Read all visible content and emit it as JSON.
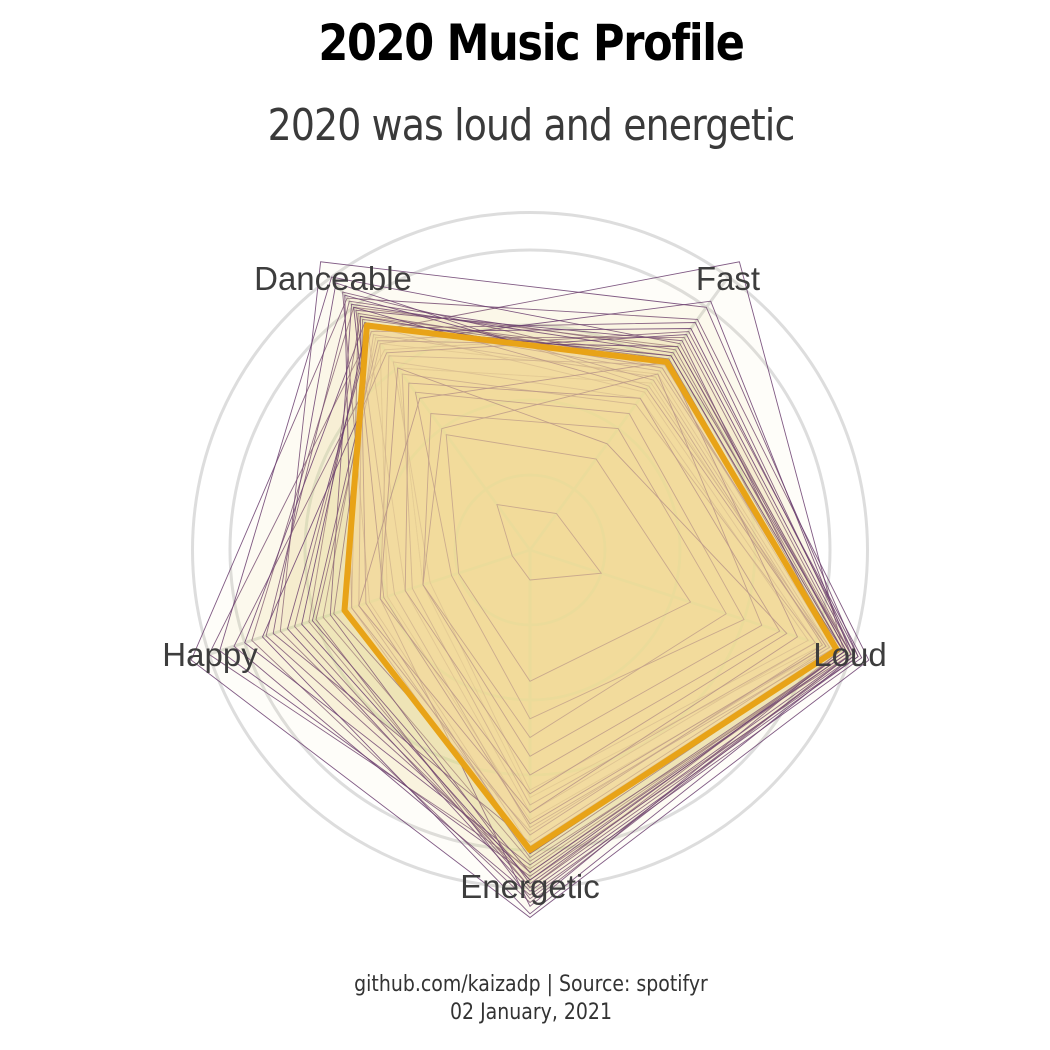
{
  "title": "2020 Music Profile",
  "subtitle": "2020 was loud and energetic",
  "caption_line1": "github.com/kaizadp | Source: spotifyr",
  "caption_line2": "02 January, 2021",
  "colors": {
    "track_line": "#6a3d6e",
    "average_fill": "#f5d99a",
    "average_stroke": "#e8a317",
    "grid": "#dddddd"
  },
  "chart_data": {
    "type": "radar",
    "axes": [
      "Fast",
      "Loud",
      "Energetic",
      "Happy",
      "Danceable"
    ],
    "range": [
      0,
      1
    ],
    "grid_levels": [
      0.2,
      0.4,
      0.6,
      0.8,
      0.9
    ],
    "average_profile": {
      "values": {
        "Fast": 0.62,
        "Loud": 0.86,
        "Energetic": 0.8,
        "Happy": 0.52,
        "Danceable": 0.74
      }
    },
    "track_profiles": [
      {
        "Fast": 0.67,
        "Loud": 0.9,
        "Energetic": 0.94,
        "Happy": 0.78,
        "Danceable": 0.8
      },
      {
        "Fast": 0.95,
        "Loud": 0.88,
        "Energetic": 0.85,
        "Happy": 0.9,
        "Danceable": 0.72
      },
      {
        "Fast": 0.76,
        "Loud": 0.95,
        "Energetic": 0.98,
        "Happy": 0.95,
        "Danceable": 0.83
      },
      {
        "Fast": 0.58,
        "Loud": 0.84,
        "Energetic": 0.72,
        "Happy": 0.4,
        "Danceable": 0.68
      },
      {
        "Fast": 0.8,
        "Loud": 0.92,
        "Energetic": 0.88,
        "Happy": 0.7,
        "Danceable": 0.95
      },
      {
        "Fast": 0.55,
        "Loud": 0.82,
        "Energetic": 0.66,
        "Happy": 0.3,
        "Danceable": 0.6
      },
      {
        "Fast": 0.64,
        "Loud": 0.87,
        "Energetic": 0.9,
        "Happy": 0.62,
        "Danceable": 0.77
      },
      {
        "Fast": 0.7,
        "Loud": 0.9,
        "Energetic": 0.83,
        "Happy": 0.58,
        "Danceable": 0.7
      },
      {
        "Fast": 0.6,
        "Loud": 0.85,
        "Energetic": 0.79,
        "Happy": 0.45,
        "Danceable": 0.85
      },
      {
        "Fast": 0.72,
        "Loud": 0.93,
        "Energetic": 0.92,
        "Happy": 0.83,
        "Danceable": 0.66
      },
      {
        "Fast": 0.52,
        "Loud": 0.8,
        "Energetic": 0.7,
        "Happy": 0.35,
        "Danceable": 0.74
      },
      {
        "Fast": 0.66,
        "Loud": 0.88,
        "Energetic": 0.86,
        "Happy": 0.74,
        "Danceable": 0.82
      },
      {
        "Fast": 0.62,
        "Loud": 0.86,
        "Energetic": 0.82,
        "Happy": 0.5,
        "Danceable": 0.78
      },
      {
        "Fast": 0.75,
        "Loud": 0.91,
        "Energetic": 0.9,
        "Happy": 0.66,
        "Danceable": 0.73
      },
      {
        "Fast": 0.5,
        "Loud": 0.78,
        "Energetic": 0.64,
        "Happy": 0.28,
        "Danceable": 0.62
      },
      {
        "Fast": 0.68,
        "Loud": 0.89,
        "Energetic": 0.87,
        "Happy": 0.87,
        "Danceable": 0.9
      },
      {
        "Fast": 0.57,
        "Loud": 0.83,
        "Energetic": 0.75,
        "Happy": 0.55,
        "Danceable": 0.71
      },
      {
        "Fast": 0.63,
        "Loud": 0.86,
        "Energetic": 0.8,
        "Happy": 0.48,
        "Danceable": 0.76
      },
      {
        "Fast": 0.82,
        "Loud": 0.9,
        "Energetic": 0.93,
        "Happy": 0.6,
        "Danceable": 0.68
      },
      {
        "Fast": 0.54,
        "Loud": 0.84,
        "Energetic": 0.78,
        "Happy": 0.72,
        "Danceable": 0.88
      },
      {
        "Fast": 0.61,
        "Loud": 0.87,
        "Energetic": 0.95,
        "Happy": 0.42,
        "Danceable": 0.64
      },
      {
        "Fast": 0.69,
        "Loud": 0.85,
        "Energetic": 0.74,
        "Happy": 0.38,
        "Danceable": 0.79
      },
      {
        "Fast": 0.59,
        "Loud": 0.88,
        "Energetic": 0.84,
        "Happy": 0.8,
        "Danceable": 0.75
      },
      {
        "Fast": 0.65,
        "Loud": 0.9,
        "Energetic": 0.89,
        "Happy": 0.56,
        "Danceable": 0.81
      },
      {
        "Fast": 0.48,
        "Loud": 0.8,
        "Energetic": 0.68,
        "Happy": 0.33,
        "Danceable": 0.58
      },
      {
        "Fast": 0.73,
        "Loud": 0.92,
        "Energetic": 0.91,
        "Happy": 0.68,
        "Danceable": 0.72
      },
      {
        "Fast": 0.56,
        "Loud": 0.82,
        "Energetic": 0.76,
        "Happy": 0.5,
        "Danceable": 0.84
      },
      {
        "Fast": 0.67,
        "Loud": 0.89,
        "Energetic": 0.86,
        "Happy": 0.61,
        "Danceable": 0.69
      },
      {
        "Fast": 0.6,
        "Loud": 0.86,
        "Energetic": 0.81,
        "Happy": 0.46,
        "Danceable": 0.77
      },
      {
        "Fast": 0.71,
        "Loud": 0.91,
        "Energetic": 0.97,
        "Happy": 0.75,
        "Danceable": 0.65
      },
      {
        "Fast": 0.53,
        "Loud": 0.83,
        "Energetic": 0.73,
        "Happy": 0.41,
        "Danceable": 0.8
      },
      {
        "Fast": 0.64,
        "Loud": 0.88,
        "Energetic": 0.88,
        "Happy": 0.64,
        "Danceable": 0.74
      },
      {
        "Fast": 0.45,
        "Loud": 0.6,
        "Energetic": 0.45,
        "Happy": 0.22,
        "Danceable": 0.52
      },
      {
        "Fast": 0.4,
        "Loud": 0.55,
        "Energetic": 0.5,
        "Happy": 0.3,
        "Danceable": 0.45
      },
      {
        "Fast": 0.3,
        "Loud": 0.45,
        "Energetic": 0.35,
        "Happy": 0.2,
        "Danceable": 0.38
      },
      {
        "Fast": 0.12,
        "Loud": 0.2,
        "Energetic": 0.08,
        "Happy": 0.05,
        "Danceable": 0.15
      },
      {
        "Fast": 0.58,
        "Loud": 0.65,
        "Energetic": 0.55,
        "Happy": 0.3,
        "Danceable": 0.4
      },
      {
        "Fast": 0.5,
        "Loud": 0.7,
        "Energetic": 0.6,
        "Happy": 0.35,
        "Danceable": 0.55
      },
      {
        "Fast": 0.35,
        "Loud": 0.72,
        "Energetic": 0.65,
        "Happy": 0.42,
        "Danceable": 0.6
      },
      {
        "Fast": 0.62,
        "Loud": 0.75,
        "Energetic": 0.7,
        "Happy": 0.48,
        "Danceable": 0.5
      }
    ]
  }
}
